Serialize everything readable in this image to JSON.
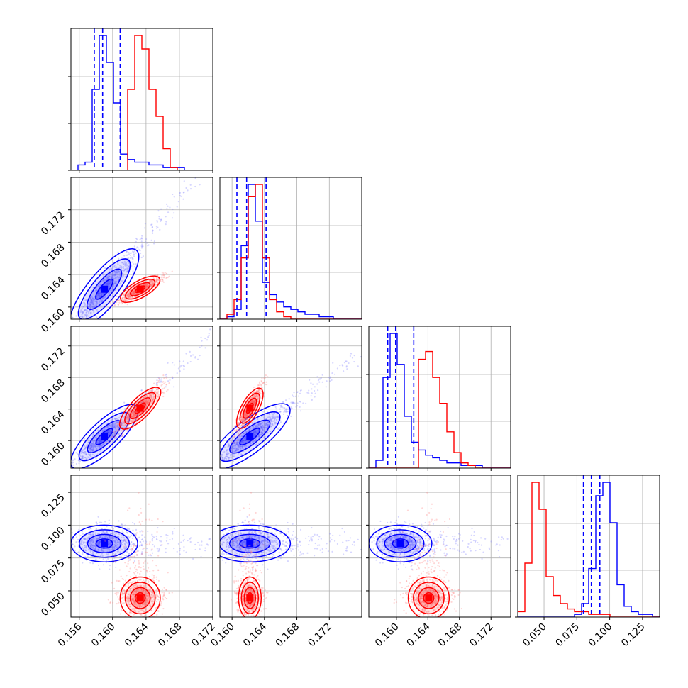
{
  "chart_data": {
    "type": "corner",
    "title": "",
    "parameters": [
      "",
      "",
      "",
      ""
    ],
    "ranges": [
      [
        0.155,
        0.172
      ],
      [
        0.1585,
        0.176
      ],
      [
        0.1565,
        0.1745
      ],
      [
        0.03,
        0.138
      ]
    ],
    "ticks": [
      {
        "values": [
          0.156,
          0.16,
          0.164,
          0.168,
          0.172
        ],
        "labels": [
          "0.156",
          "0.160",
          "0.164",
          "0.168",
          "0.172"
        ]
      },
      {
        "values": [
          0.16,
          0.164,
          0.168,
          0.172
        ],
        "labels": [
          "0.160",
          "0.164",
          "0.168",
          "0.172"
        ]
      },
      {
        "values": [
          0.16,
          0.164,
          0.168,
          0.172
        ],
        "labels": [
          "0.160",
          "0.164",
          "0.168",
          "0.172"
        ]
      },
      {
        "values": [
          0.05,
          0.075,
          0.1,
          0.125
        ],
        "labels": [
          "0.050",
          "0.075",
          "0.100",
          "0.125"
        ]
      }
    ],
    "grid": true,
    "colors": {
      "blue": "#0000ff",
      "red": "#ff0000"
    },
    "series": [
      {
        "color": "#0000ff",
        "mean": [
          0.159,
          0.1622,
          0.1605,
          0.086
        ],
        "std": [
          0.002,
          0.0025,
          0.002,
          0.007
        ],
        "skew_tail": [
          1,
          1,
          1,
          0
        ],
        "quantiles": [
          [
            0.1578,
            0.1588,
            0.1609
          ],
          [
            0.1606,
            0.1618,
            0.1642
          ],
          [
            0.1589,
            0.1599,
            0.1622
          ],
          [
            0.08,
            0.086,
            0.0925
          ]
        ],
        "hist": [
          {
            "edges_from": 0.155,
            "step": 0.00085,
            "values": [
              0,
              2,
              3,
              30,
              50,
              40,
              25,
              6,
              4,
              3,
              3,
              2,
              2,
              1,
              1,
              1,
              0,
              0,
              0,
              0
            ]
          },
          {
            "edges_from": 0.1585,
            "step": 0.000875,
            "values": [
              0,
              1,
              4,
              30,
              55,
              40,
              15,
              10,
              7,
              5,
              4,
              3,
              2,
              2,
              1,
              1,
              0,
              0,
              0,
              0
            ]
          },
          {
            "edges_from": 0.1565,
            "step": 0.0009,
            "values": [
              0,
              3,
              35,
              52,
              40,
              20,
              10,
              7,
              5,
              4,
              3,
              2,
              2,
              1,
              1,
              1,
              0,
              0,
              0,
              0
            ]
          },
          {
            "edges_from": 0.03,
            "step": 0.0054,
            "values": [
              0,
              0,
              0,
              0,
              0,
              0,
              0,
              0,
              1,
              5,
              18,
              45,
              50,
              35,
              12,
              4,
              2,
              1,
              1,
              0
            ]
          }
        ]
      },
      {
        "color": "#ff0000",
        "mean": [
          0.1633,
          0.1622,
          0.1641,
          0.0445
        ],
        "std": [
          0.0012,
          0.0007,
          0.0013,
          0.008
        ],
        "skew_tail": [
          0,
          0,
          0,
          1
        ],
        "quantiles": [],
        "hist": [
          {
            "edges_from": 0.155,
            "step": 0.00085,
            "values": [
              0,
              0,
              0,
              0,
              0,
              0,
              0,
              0,
              30,
              50,
              45,
              30,
              20,
              8,
              1,
              0,
              0,
              0,
              0,
              0
            ]
          },
          {
            "edges_from": 0.1585,
            "step": 0.000875,
            "values": [
              0,
              2,
              8,
              25,
              50,
              55,
              25,
              8,
              3,
              1,
              0,
              0,
              0,
              0,
              0,
              0,
              0,
              0,
              0,
              0
            ]
          },
          {
            "edges_from": 0.1565,
            "step": 0.0009,
            "values": [
              0,
              0,
              0,
              0,
              0,
              0,
              0,
              42,
              45,
              35,
              25,
              14,
              6,
              2,
              1,
              0,
              0,
              0,
              0,
              0
            ]
          },
          {
            "edges_from": 0.03,
            "step": 0.0054,
            "values": [
              2,
              20,
              50,
              40,
              15,
              8,
              5,
              3,
              2,
              2,
              1,
              1,
              1,
              0,
              0,
              0,
              0,
              0,
              0,
              0
            ]
          }
        ]
      }
    ]
  }
}
